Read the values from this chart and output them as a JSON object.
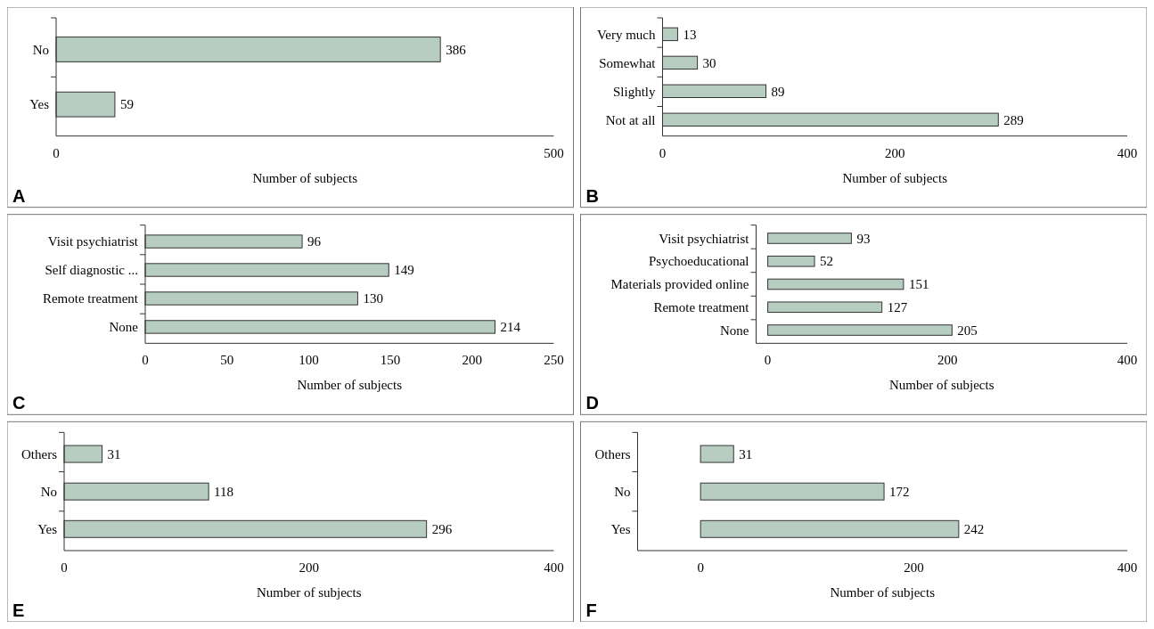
{
  "chart_data": [
    {
      "type": "bar",
      "orientation": "horizontal",
      "categories": [
        "No",
        "Yes"
      ],
      "values": [
        386,
        59
      ],
      "color": "#b7cdc1",
      "xlim": [
        0,
        500
      ],
      "xticks": [
        0,
        500
      ],
      "xlabel": "Number of subjects",
      "data_labels": true,
      "annotations": [
        "A"
      ]
    },
    {
      "type": "bar",
      "orientation": "horizontal",
      "categories": [
        "Very much",
        "Somewhat",
        "Slightly",
        "Not at all"
      ],
      "values": [
        13,
        30,
        89,
        289
      ],
      "color": "#b7cdc1",
      "xlim": [
        0,
        400
      ],
      "xticks": [
        0,
        200,
        400
      ],
      "xlabel": "Number of subjects",
      "data_labels": true,
      "annotations": [
        "B"
      ]
    },
    {
      "type": "bar",
      "orientation": "horizontal",
      "categories": [
        "Visit psychiatrist",
        "Self diagnostic ...",
        "Remote treatment",
        "None"
      ],
      "values": [
        96,
        149,
        130,
        214
      ],
      "color": "#b7cdc1",
      "xlim": [
        0,
        250
      ],
      "xticks": [
        0,
        50,
        100,
        150,
        200,
        250
      ],
      "xlabel": "Number of subjects",
      "data_labels": true,
      "annotations": [
        "C"
      ]
    },
    {
      "type": "bar",
      "orientation": "horizontal",
      "categories": [
        "Visit psychiatrist",
        "Psychoeducational",
        "Materials provided online",
        "Remote treatment",
        "None"
      ],
      "values": [
        93,
        52,
        151,
        127,
        205
      ],
      "color": "#b7cdc1",
      "xlim": [
        -13,
        400
      ],
      "xticks": [
        0,
        200,
        400
      ],
      "xlabel": "Number of subjects",
      "data_labels": true,
      "annotations": [
        "D"
      ]
    },
    {
      "type": "bar",
      "orientation": "horizontal",
      "categories": [
        "Others",
        "No",
        "Yes"
      ],
      "values": [
        31,
        118,
        296
      ],
      "color": "#b7cdc1",
      "xlim": [
        0,
        400
      ],
      "xticks": [
        0,
        200,
        400
      ],
      "xlabel": "Number of subjects",
      "data_labels": true,
      "annotations": [
        "E"
      ]
    },
    {
      "type": "bar",
      "orientation": "horizontal",
      "categories": [
        "Others",
        "No",
        "Yes"
      ],
      "values": [
        31,
        172,
        242
      ],
      "color": "#b7cdc1",
      "xlim": [
        -59,
        400
      ],
      "xticks": [
        0,
        200,
        400
      ],
      "xlabel": "Number of subjects",
      "data_labels": true,
      "annotations": [
        "F"
      ]
    }
  ]
}
